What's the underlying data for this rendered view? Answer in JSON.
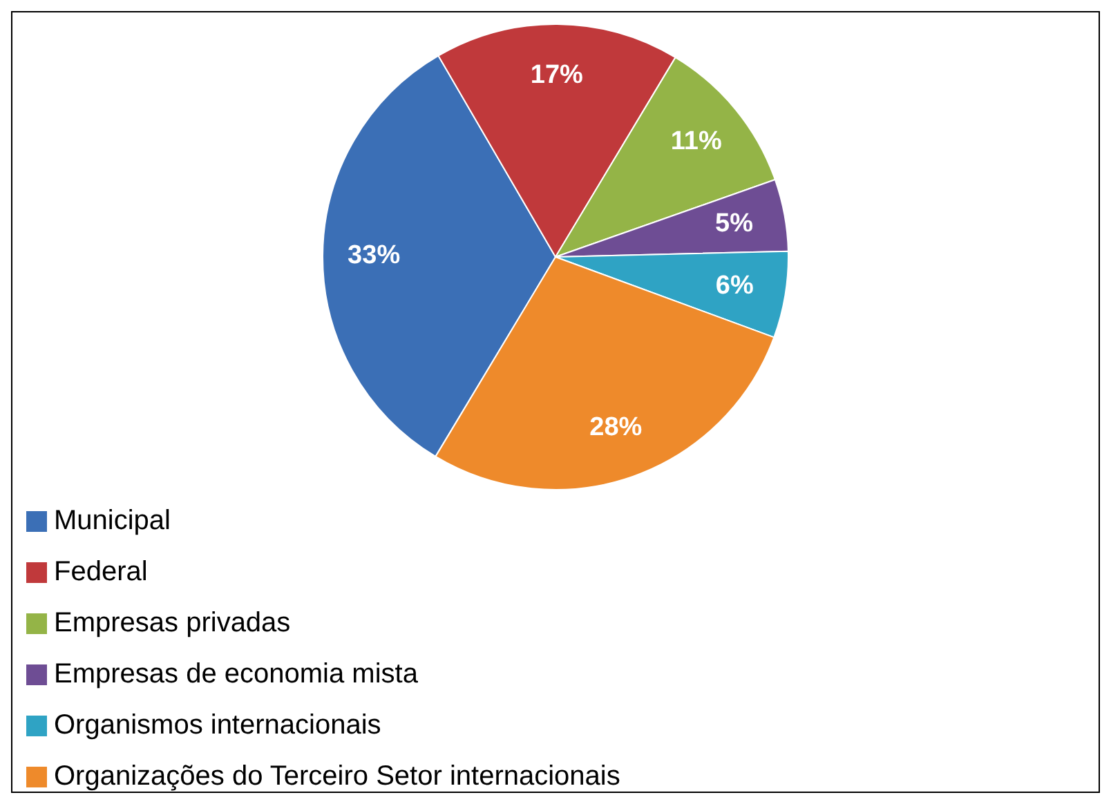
{
  "chart_data": {
    "type": "pie",
    "categories": [
      "Municipal",
      "Federal",
      "Empresas privadas",
      "Empresas de economia mista",
      "Organismos internacionais",
      "Organizações do Terceiro Setor internacionais"
    ],
    "values": [
      33,
      17,
      11,
      5,
      6,
      28
    ],
    "value_labels": [
      "33%",
      "17%",
      "11%",
      "5%",
      "6%",
      "28%"
    ],
    "colors": [
      "#3b6fb6",
      "#c0393b",
      "#94b447",
      "#6e4d94",
      "#2fa3c4",
      "#ee8a2b"
    ],
    "legend": "bottom left"
  }
}
